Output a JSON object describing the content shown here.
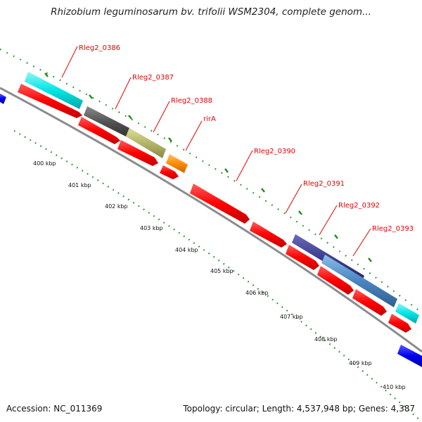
{
  "title": "Rhizobium leguminosarum bv. trifolii WSM2304, complete genom...",
  "footer": {
    "accession": "Accession: NC_011369",
    "summary": "Topology: circular; Length: 4,537,948 bp; Genes: 4,387"
  },
  "colors": {
    "backbone": "#8c8c8c",
    "cds_forward": "#ff0000",
    "tick_dots": "#1f8a1f",
    "gene_label": "#e60000",
    "neighbor_cds": "#0000ee"
  },
  "scale": {
    "unit": "kbp",
    "tick_labels": [
      "400 kbp",
      "401 kbp",
      "402 kbp",
      "403 kbp",
      "404 kbp",
      "405 kbp",
      "406 kbp",
      "407 kbp",
      "408 kbp",
      "409 kbp",
      "410 kbp"
    ]
  },
  "genes": [
    {
      "label": "Rleg2_0386",
      "color": "#00e5e5"
    },
    {
      "label": "Rleg2_0387",
      "color": "#555555"
    },
    {
      "label": "Rleg2_0388",
      "color": "#b5b56a"
    },
    {
      "label": "rirA",
      "color": "#ff8c00"
    },
    {
      "label": "Rleg2_0390",
      "color": "#ff0000"
    },
    {
      "label": "Rleg2_0391",
      "color": "#ff0000"
    },
    {
      "label": "Rleg2_0392",
      "color": "#3a3a8c"
    },
    {
      "label": "Rleg2_0393",
      "color": "#4a86c0"
    }
  ]
}
